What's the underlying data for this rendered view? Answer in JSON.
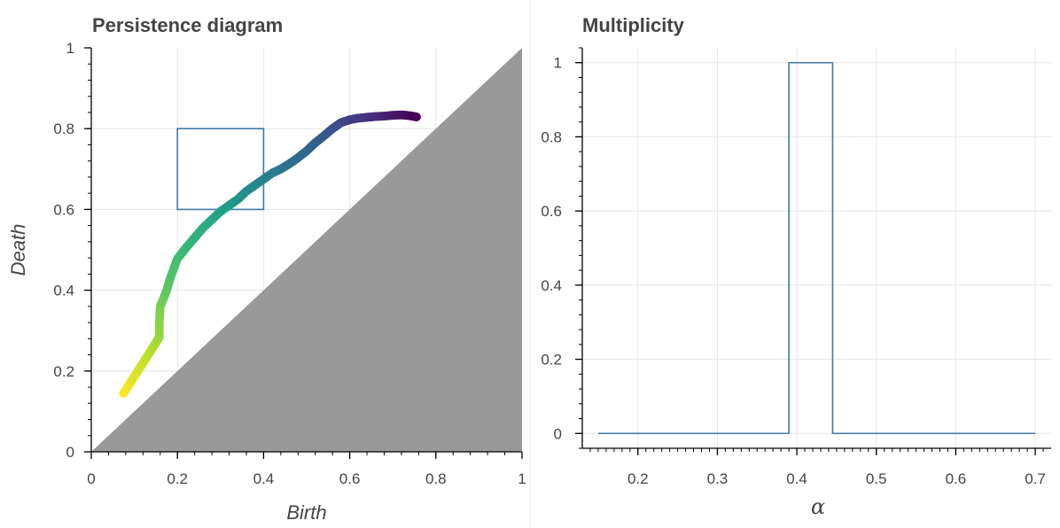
{
  "chart_data": [
    {
      "type": "scatter",
      "title": "Persistence diagram",
      "xlabel": "Birth",
      "ylabel": "Death",
      "xlim": [
        0,
        1
      ],
      "ylim": [
        0,
        1
      ],
      "xticks": [
        "0",
        "0.2",
        "0.4",
        "0.6",
        "0.8",
        "1"
      ],
      "yticks": [
        "0",
        "0.2",
        "0.4",
        "0.6",
        "0.8",
        "1"
      ],
      "grid": true,
      "colormap": "viridis",
      "diagonal_shading_color": "#999999",
      "box_color": "#3f78a6",
      "selection_box": {
        "x": [
          0.2,
          0.4
        ],
        "y": [
          0.6,
          0.8
        ]
      },
      "points": [
        [
          0.075,
          0.145
        ],
        [
          0.09,
          0.17
        ],
        [
          0.105,
          0.195
        ],
        [
          0.12,
          0.22
        ],
        [
          0.135,
          0.245
        ],
        [
          0.15,
          0.27
        ],
        [
          0.158,
          0.285
        ],
        [
          0.158,
          0.32
        ],
        [
          0.16,
          0.36
        ],
        [
          0.168,
          0.38
        ],
        [
          0.175,
          0.4
        ],
        [
          0.185,
          0.435
        ],
        [
          0.2,
          0.478
        ],
        [
          0.22,
          0.505
        ],
        [
          0.24,
          0.53
        ],
        [
          0.26,
          0.555
        ],
        [
          0.28,
          0.575
        ],
        [
          0.3,
          0.595
        ],
        [
          0.32,
          0.61
        ],
        [
          0.34,
          0.625
        ],
        [
          0.36,
          0.645
        ],
        [
          0.38,
          0.66
        ],
        [
          0.4,
          0.675
        ],
        [
          0.42,
          0.69
        ],
        [
          0.44,
          0.7
        ],
        [
          0.46,
          0.713
        ],
        [
          0.48,
          0.728
        ],
        [
          0.5,
          0.745
        ],
        [
          0.52,
          0.765
        ],
        [
          0.54,
          0.782
        ],
        [
          0.56,
          0.8
        ],
        [
          0.58,
          0.815
        ],
        [
          0.6,
          0.822
        ],
        [
          0.62,
          0.826
        ],
        [
          0.64,
          0.828
        ],
        [
          0.66,
          0.83
        ],
        [
          0.68,
          0.831
        ],
        [
          0.7,
          0.833
        ],
        [
          0.72,
          0.834
        ],
        [
          0.74,
          0.832
        ],
        [
          0.755,
          0.829
        ]
      ]
    },
    {
      "type": "line",
      "title": "Multiplicity",
      "xlabel": "α",
      "ylabel": "",
      "xlim": [
        0.13,
        0.72
      ],
      "ylim": [
        -0.04,
        1.04
      ],
      "xticks": [
        "0.2",
        "0.3",
        "0.4",
        "0.5",
        "0.6",
        "0.7"
      ],
      "yticks": [
        "0",
        "0.2",
        "0.4",
        "0.6",
        "0.8",
        "1"
      ],
      "grid": true,
      "line_color": "#3f78a6",
      "x": [
        0.15,
        0.39,
        0.39,
        0.445,
        0.445,
        0.7
      ],
      "y": [
        0,
        0,
        1,
        1,
        0,
        0
      ]
    }
  ]
}
